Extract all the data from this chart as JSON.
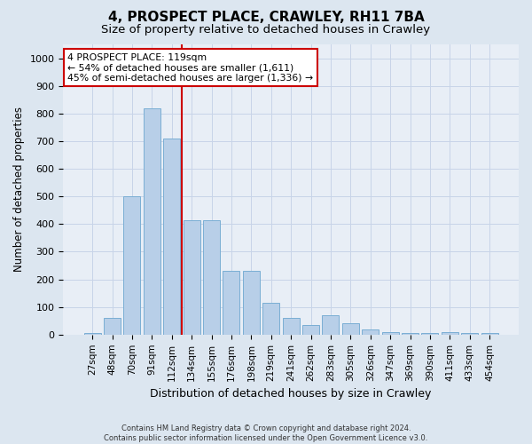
{
  "title": "4, PROSPECT PLACE, CRAWLEY, RH11 7BA",
  "subtitle": "Size of property relative to detached houses in Crawley",
  "xlabel": "Distribution of detached houses by size in Crawley",
  "ylabel": "Number of detached properties",
  "footer_line1": "Contains HM Land Registry data © Crown copyright and database right 2024.",
  "footer_line2": "Contains public sector information licensed under the Open Government Licence v3.0.",
  "bar_labels": [
    "27sqm",
    "48sqm",
    "70sqm",
    "91sqm",
    "112sqm",
    "134sqm",
    "155sqm",
    "176sqm",
    "198sqm",
    "219sqm",
    "241sqm",
    "262sqm",
    "283sqm",
    "305sqm",
    "326sqm",
    "347sqm",
    "369sqm",
    "390sqm",
    "411sqm",
    "433sqm",
    "454sqm"
  ],
  "bar_values": [
    5,
    60,
    500,
    820,
    710,
    415,
    415,
    230,
    230,
    115,
    60,
    35,
    70,
    40,
    20,
    10,
    5,
    5,
    10,
    5,
    5
  ],
  "bar_color": "#b8cfe8",
  "bar_edgecolor": "#7aaed4",
  "vline_x": 4.5,
  "vline_color": "#cc0000",
  "annotation_text": "4 PROSPECT PLACE: 119sqm\n← 54% of detached houses are smaller (1,611)\n45% of semi-detached houses are larger (1,336) →",
  "annotation_box_facecolor": "#ffffff",
  "annotation_box_edgecolor": "#cc0000",
  "ylim": [
    0,
    1050
  ],
  "yticks": [
    0,
    100,
    200,
    300,
    400,
    500,
    600,
    700,
    800,
    900,
    1000
  ],
  "grid_color": "#c8d4e8",
  "bg_color": "#dce6f0",
  "plot_bg_color": "#e8eef6",
  "title_fontsize": 11,
  "subtitle_fontsize": 9.5,
  "xlabel_fontsize": 9,
  "ylabel_fontsize": 8.5,
  "tick_fontsize": 7.5,
  "ytick_fontsize": 8
}
